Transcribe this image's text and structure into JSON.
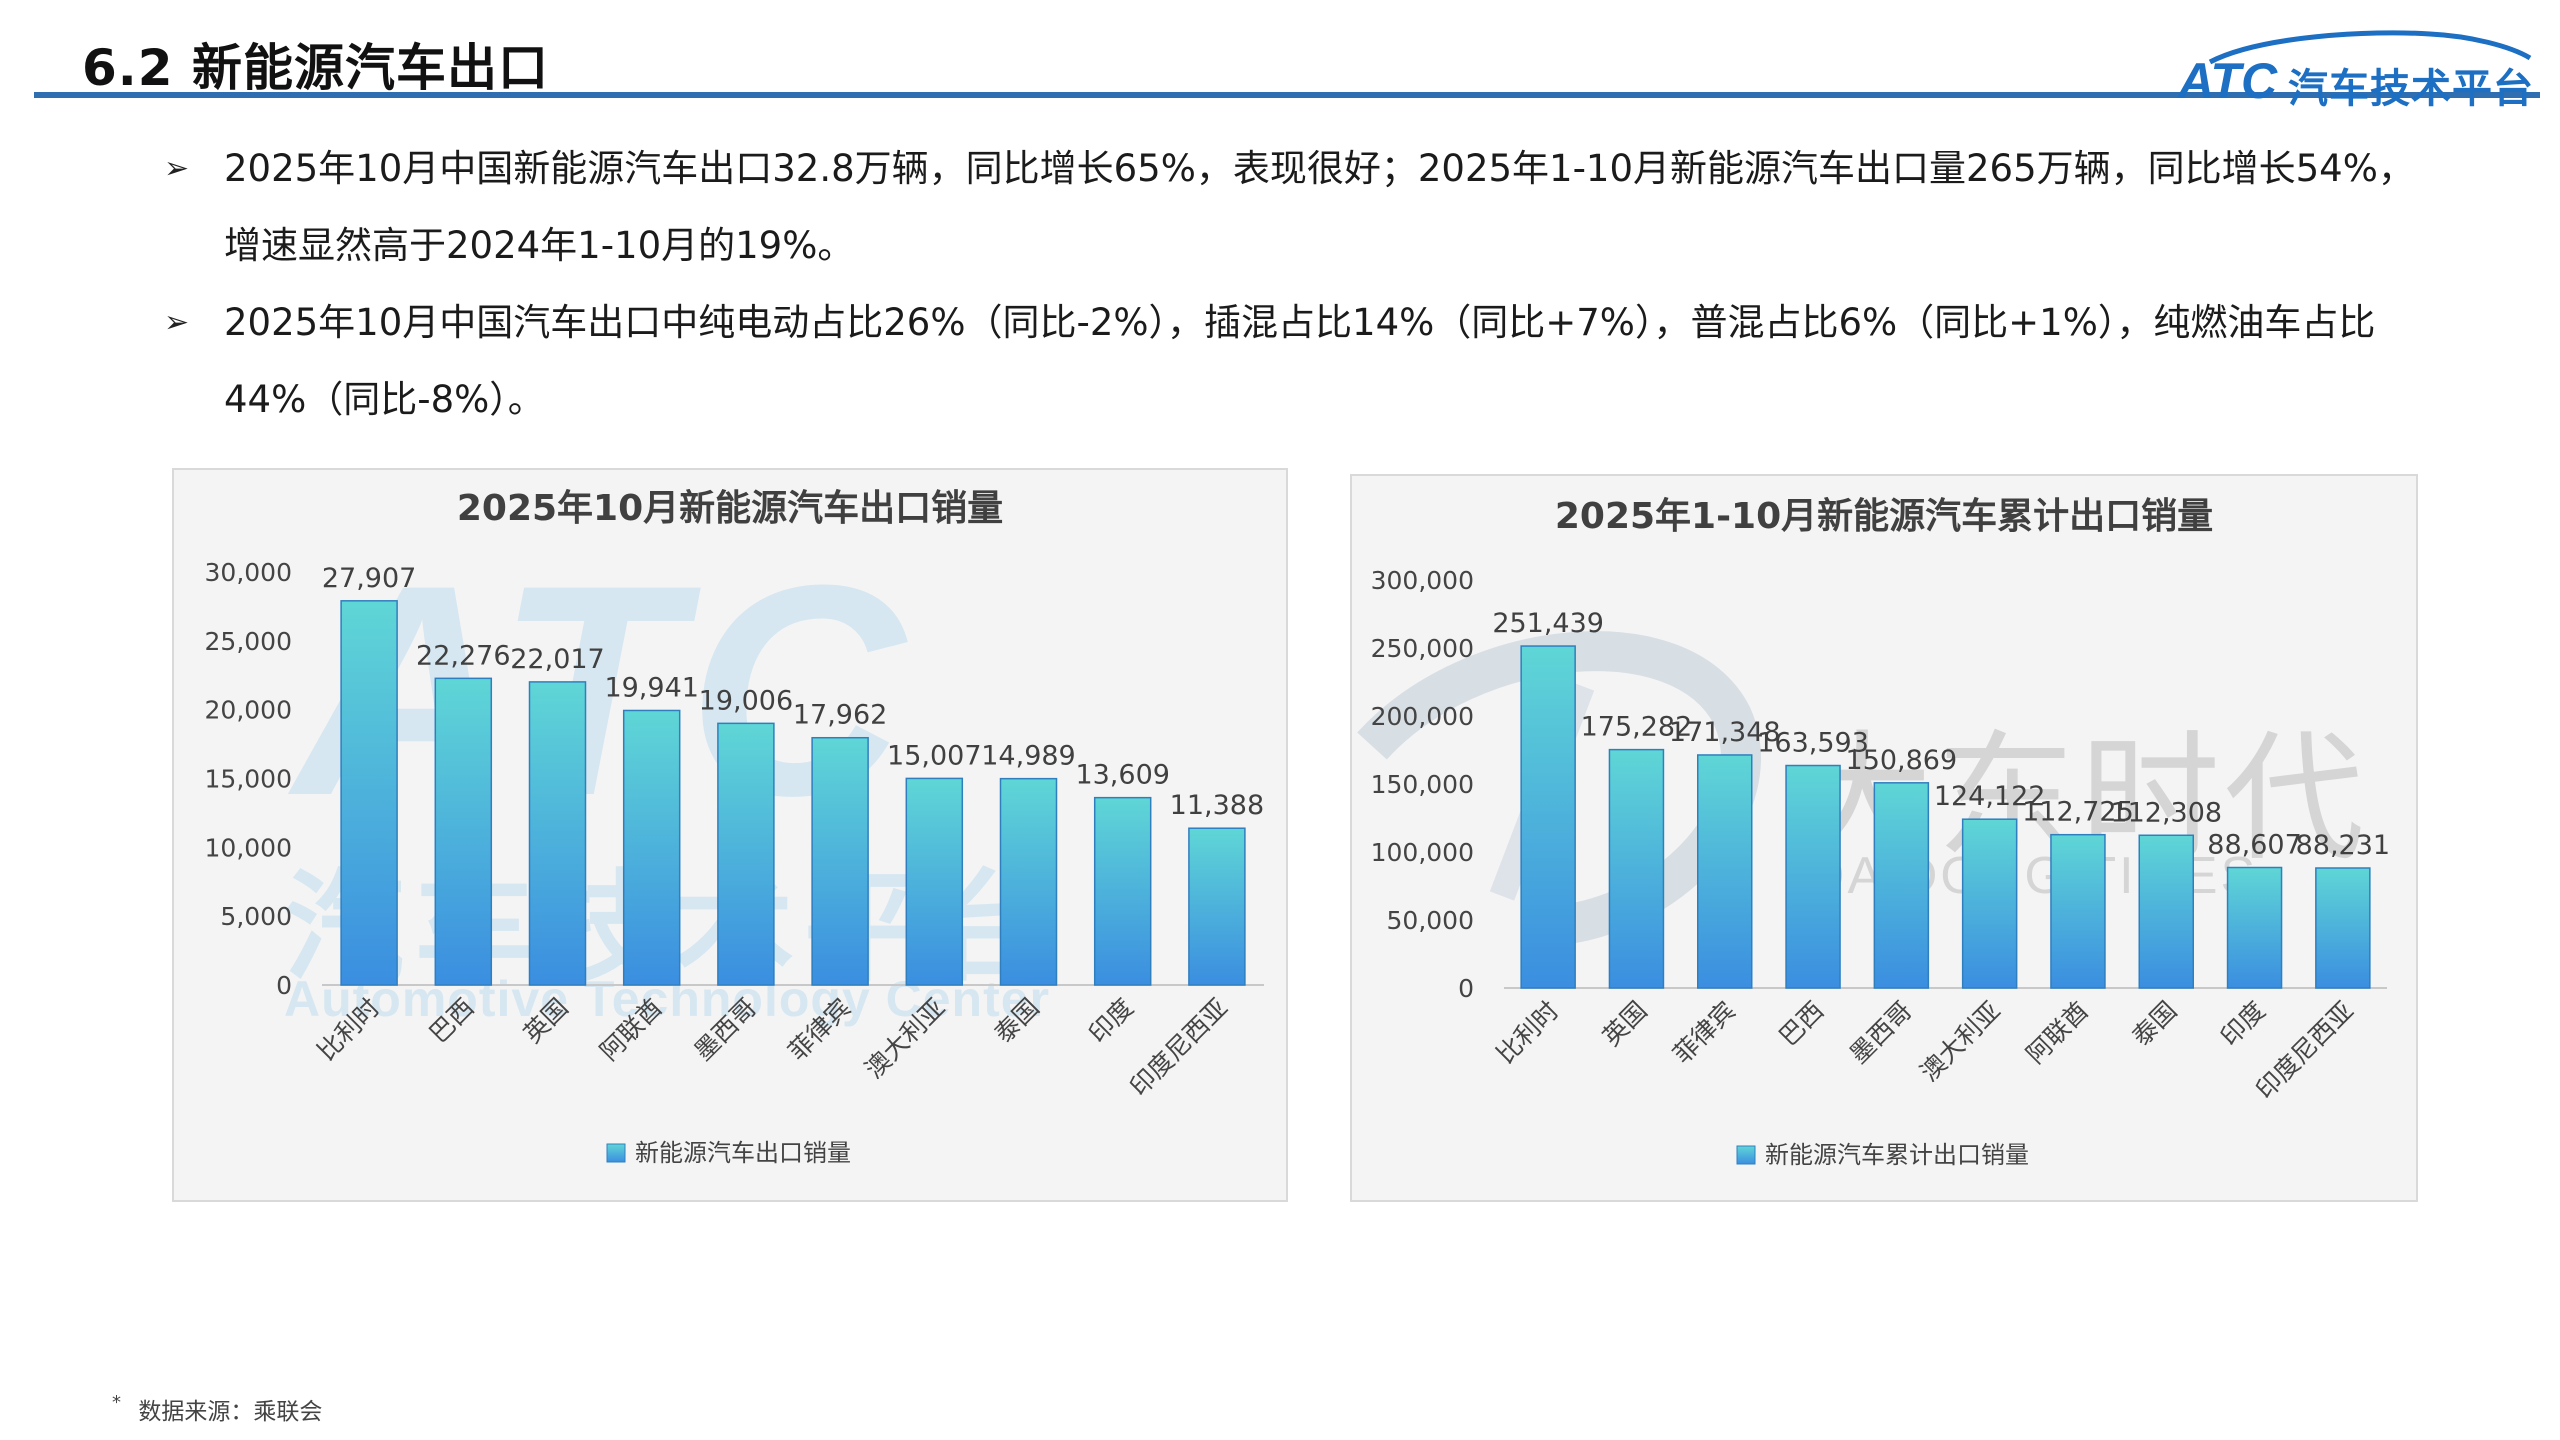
{
  "header": {
    "title": "6.2 新能源汽车出口",
    "logo_abbr": "ATC",
    "logo_text": "汽车技术平台"
  },
  "bullets": [
    "2025年10月中国新能源汽车出口32.8万辆，同比增长65%，表现很好；2025年1-10月新能源汽车出口量265万辆，同比增长54%，增速显然高于2024年1-10月的19%。",
    "2025年10月中国汽车出口中纯电动占比26%（同比-2%），插混占比14%（同比+7%），普混占比6%（同比+1%），纯燃油车占比44%（同比-8%）。"
  ],
  "bullet_marker": "➢",
  "watermarks": {
    "left_abbr": "ATC",
    "left_cn": "汽车技术平台",
    "left_en": "Automotive Technology Center",
    "right_cn": "大东时代",
    "right_en": "DA DONG TIMES"
  },
  "colors": {
    "bar_top": "#5fd6d6",
    "bar_bottom": "#3b8ee0",
    "title_rule": "#2f6fb1",
    "logo_blue": "#1c6fc2"
  },
  "chart_data": [
    {
      "type": "bar",
      "title": "2025年10月新能源汽车出口销量",
      "categories": [
        "比利时",
        "巴西",
        "英国",
        "阿联酋",
        "墨西哥",
        "菲律宾",
        "澳大利亚",
        "泰国",
        "印度",
        "印度尼西亚"
      ],
      "series": [
        {
          "name": "新能源汽车出口销量",
          "values": [
            27907,
            22276,
            22017,
            19941,
            19006,
            17962,
            15007,
            14989,
            13609,
            11388
          ]
        }
      ],
      "value_labels": [
        "27,907",
        "22,276",
        "22,017",
        "19,941",
        "19,006",
        "17,962",
        "15,007",
        "14,989",
        "13,609",
        "11,388"
      ],
      "yticks": [
        "0",
        "5,000",
        "10,000",
        "15,000",
        "20,000",
        "25,000",
        "30,000"
      ],
      "ylim": [
        0,
        30000
      ],
      "legend": "bottom"
    },
    {
      "type": "bar",
      "title": "2025年1-10月新能源汽车累计出口销量",
      "categories": [
        "比利时",
        "英国",
        "菲律宾",
        "巴西",
        "墨西哥",
        "澳大利亚",
        "阿联酋",
        "泰国",
        "印度",
        "印度尼西亚"
      ],
      "series": [
        {
          "name": "新能源汽车累计出口销量",
          "values": [
            251439,
            175282,
            171348,
            163593,
            150869,
            124122,
            112725,
            112308,
            88607,
            88231
          ]
        }
      ],
      "value_labels": [
        "251,439",
        "175,282",
        "171,348",
        "163,593",
        "150,869",
        "124,122",
        "112,725",
        "112,308",
        "88,607",
        "88,231"
      ],
      "yticks": [
        "0",
        "50,000",
        "100,000",
        "150,000",
        "200,000",
        "250,000",
        "300,000"
      ],
      "ylim": [
        0,
        300000
      ],
      "legend": "bottom"
    }
  ],
  "footer": {
    "source": "数据来源：乘联会",
    "source_marker": "*"
  }
}
